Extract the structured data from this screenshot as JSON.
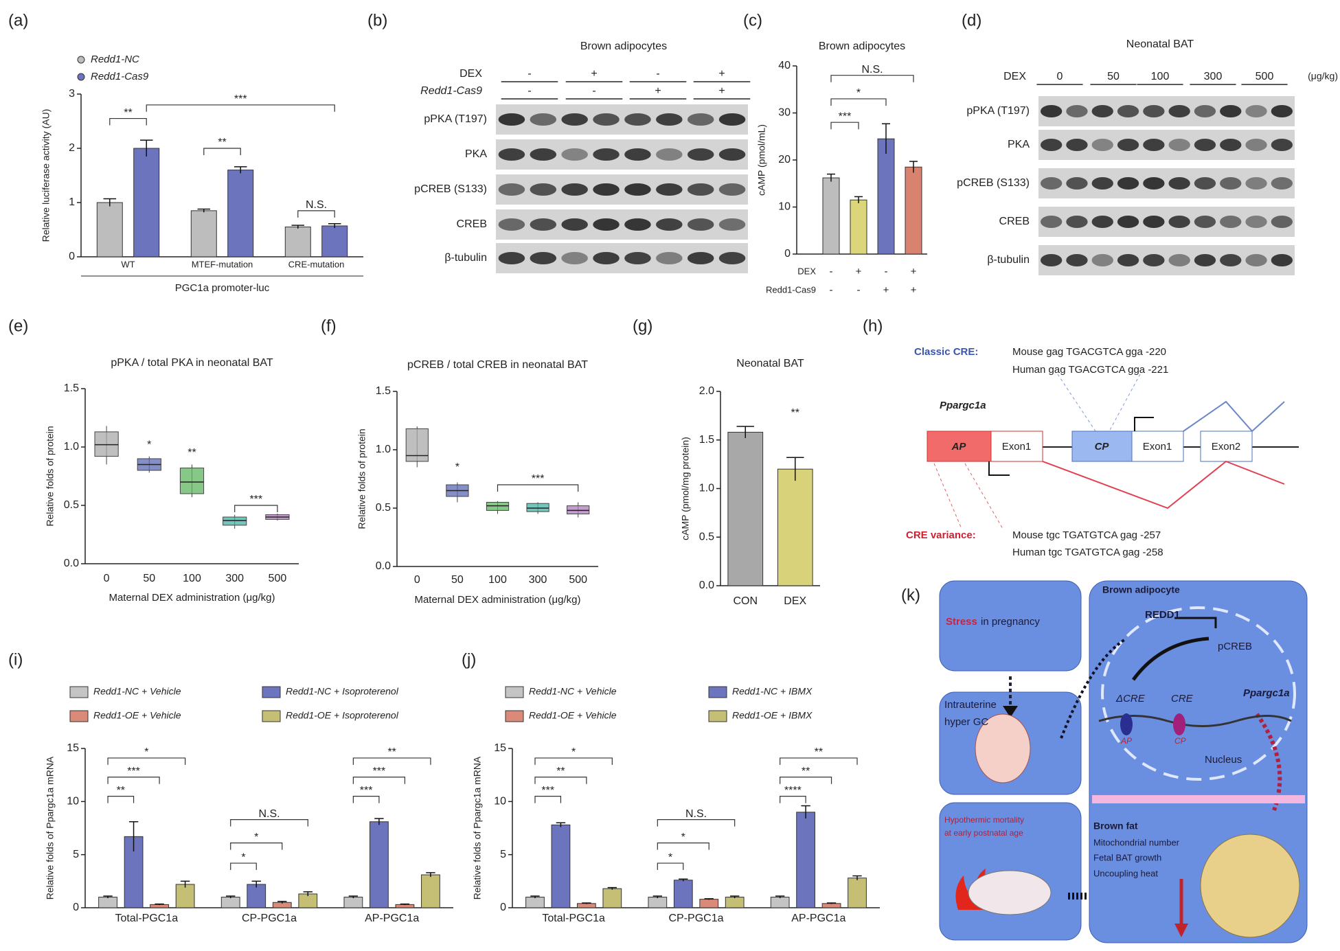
{
  "panel_labels": [
    "(a)",
    "(b)",
    "(c)",
    "(d)",
    "(e)",
    "(f)",
    "(g)",
    "(h)",
    "(i)",
    "(j)",
    "(k)"
  ],
  "chart_data": [
    {
      "type": "bar",
      "categories": [
        "WT",
        "MTEF-mutation",
        "CRE-mutation"
      ],
      "series": [
        {
          "name": "Redd1-NC",
          "color": "#bdbdbd",
          "values": [
            1.0,
            0.85,
            0.55
          ],
          "errors": [
            0.07,
            0.03,
            0.03
          ]
        },
        {
          "name": "Redd1-Cas9",
          "color": "#6b74bd",
          "values": [
            2.0,
            1.6,
            0.57
          ],
          "errors": [
            0.15,
            0.06,
            0.04
          ]
        }
      ],
      "ylabel": "Relative luciferase activity (AU)",
      "xlabel": "PGC1a promoter-luc",
      "ylim": [
        0,
        3
      ],
      "yticks": [
        0,
        1,
        2,
        3
      ],
      "annotations": [
        "**",
        "***",
        "**",
        "N.S."
      ]
    },
    {
      "type": "bar",
      "title": "Brown adipocytes",
      "values": [
        16.2,
        11.5,
        24.5,
        18.5
      ],
      "errors": [
        0.8,
        0.7,
        3.2,
        1.2
      ],
      "colors": [
        "#bdbdbd",
        "#dcd67a",
        "#6b74bd",
        "#d9826f"
      ],
      "conditions": [
        {
          "label": "DEX",
          "values": [
            "-",
            "+",
            "-",
            "+"
          ]
        },
        {
          "label": "Redd1-Cas9",
          "values": [
            "-",
            "-",
            "+",
            "+"
          ]
        }
      ],
      "ylabel": "cAMP (pmol/mL)",
      "ylim": [
        0,
        40
      ],
      "yticks": [
        0,
        10,
        20,
        30,
        40
      ],
      "annotations": [
        "N.S.",
        "*",
        "***"
      ]
    },
    {
      "type": "box",
      "title": "pPKA / total PKA in neonatal BAT",
      "categories": [
        "0",
        "50",
        "100",
        "300",
        "500"
      ],
      "min": [
        0.85,
        0.78,
        0.57,
        0.3,
        0.37
      ],
      "q1": [
        0.92,
        0.8,
        0.6,
        0.33,
        0.38
      ],
      "median": [
        1.02,
        0.85,
        0.7,
        0.37,
        0.4
      ],
      "q3": [
        1.13,
        0.9,
        0.82,
        0.4,
        0.42
      ],
      "max": [
        1.18,
        0.92,
        0.85,
        0.42,
        0.43
      ],
      "colors": [
        "#a9a9a9",
        "#5b68b5",
        "#5fb660",
        "#45b3a5",
        "#b27cbd"
      ],
      "ylabel": "Relative folds of protein",
      "xlabel": "Maternal DEX administration (μg/kg)",
      "ylim": [
        0,
        1.5
      ],
      "yticks": [
        {
          "value": 0,
          "label": "0.0"
        },
        0.5,
        {
          "value": 1,
          "label": "1.0"
        },
        1.5
      ],
      "annotations": [
        "*",
        "**",
        "***"
      ]
    },
    {
      "type": "box",
      "title": "pCREB / total CREB in neonatal BAT",
      "categories": [
        "0",
        "50",
        "100",
        "300",
        "500"
      ],
      "min": [
        0.85,
        0.55,
        0.45,
        0.45,
        0.42
      ],
      "q1": [
        0.9,
        0.6,
        0.48,
        0.47,
        0.45
      ],
      "median": [
        0.95,
        0.65,
        0.52,
        0.5,
        0.48
      ],
      "q3": [
        1.18,
        0.7,
        0.55,
        0.54,
        0.52
      ],
      "max": [
        1.2,
        0.72,
        0.56,
        0.55,
        0.55
      ],
      "colors": [
        "#a9a9a9",
        "#5b68b5",
        "#5fb660",
        "#45b3a5",
        "#b27cbd"
      ],
      "ylabel": "Relative folds of protein",
      "xlabel": "Maternal DEX administration (μg/kg)",
      "ylim": [
        0,
        1.5
      ],
      "yticks": [
        {
          "value": 0,
          "label": "0.0"
        },
        0.5,
        {
          "value": 1,
          "label": "1.0"
        },
        1.5
      ],
      "annotations": [
        "*",
        "***"
      ]
    },
    {
      "type": "bar",
      "title": "Neonatal BAT",
      "categories": [
        "CON",
        "DEX"
      ],
      "values": [
        1.58,
        1.2
      ],
      "errors": [
        0.06,
        0.12
      ],
      "colors": [
        "#a8a8a8",
        "#d8d27a"
      ],
      "ylabel": "cAMP (pmol/mg protein)",
      "ylim": [
        0,
        2
      ],
      "yticks": [
        {
          "value": 0,
          "label": "0.0"
        },
        0.5,
        {
          "value": 1,
          "label": "1.0"
        },
        1.5,
        {
          "value": 2,
          "label": "2.0"
        }
      ],
      "annotations": [
        "**"
      ]
    },
    {
      "type": "bar",
      "categories": [
        "Total-PGC1a",
        "CP-PGC1a",
        "AP-PGC1a"
      ],
      "series": [
        {
          "name": "Redd1-NC + Vehicle",
          "color": "#c4c4c4",
          "values": [
            1,
            1,
            1
          ],
          "errors": [
            0.1,
            0.1,
            0.1
          ]
        },
        {
          "name": "Redd1-NC + Isoproterenol",
          "color": "#6b74bd",
          "values": [
            6.7,
            2.2,
            8.1
          ],
          "errors": [
            1.4,
            0.3,
            0.3
          ]
        },
        {
          "name": "Redd1-OE + Vehicle",
          "color": "#d98a78",
          "values": [
            0.3,
            0.5,
            0.3
          ],
          "errors": [
            0.05,
            0.1,
            0.05
          ]
        },
        {
          "name": "Redd1-OE + Isoproterenol",
          "color": "#c4bf74",
          "values": [
            2.2,
            1.3,
            3.1
          ],
          "errors": [
            0.3,
            0.2,
            0.2
          ]
        }
      ],
      "ylabel": "Relative folds of Ppargc1a mRNA",
      "ylim": [
        0,
        15
      ],
      "yticks": [
        0,
        5,
        10,
        15
      ],
      "annotations": [
        "**",
        "***",
        "*",
        "*",
        "*",
        "N.S.",
        "***",
        "***",
        "**"
      ]
    },
    {
      "type": "bar",
      "categories": [
        "Total-PGC1a",
        "CP-PGC1a",
        "AP-PGC1a"
      ],
      "series": [
        {
          "name": "Redd1-NC + Vehicle",
          "color": "#c4c4c4",
          "values": [
            1,
            1,
            1
          ],
          "errors": [
            0.1,
            0.1,
            0.1
          ]
        },
        {
          "name": "Redd1-NC + IBMX",
          "color": "#6b74bd",
          "values": [
            7.8,
            2.6,
            9.0
          ],
          "errors": [
            0.2,
            0.1,
            0.6
          ]
        },
        {
          "name": "Redd1-OE + Vehicle",
          "color": "#d98a78",
          "values": [
            0.4,
            0.8,
            0.4
          ],
          "errors": [
            0.05,
            0.05,
            0.05
          ]
        },
        {
          "name": "Redd1-OE + IBMX",
          "color": "#c4bf74",
          "values": [
            1.8,
            1.0,
            2.8
          ],
          "errors": [
            0.1,
            0.1,
            0.2
          ]
        }
      ],
      "ylabel": "Relative folds of Ppargc1a mRNA",
      "ylim": [
        0,
        15
      ],
      "yticks": [
        0,
        5,
        10,
        15
      ],
      "annotations": [
        "***",
        "**",
        "*",
        "*",
        "*",
        "N.S.",
        "****",
        "**",
        "**"
      ]
    }
  ],
  "blots": [
    {
      "title": "Brown adipocytes",
      "conditions": [
        {
          "label": "DEX",
          "values": [
            "-",
            "+",
            "-",
            "+"
          ]
        },
        {
          "label": "Redd1-Cas9",
          "values": [
            "-",
            "-",
            "+",
            "+"
          ]
        }
      ],
      "rows": [
        "pPKA (T197)",
        "PKA",
        "pCREB (S133)",
        "CREB",
        "β-tubulin"
      ]
    },
    {
      "title": "Neonatal BAT",
      "conditions": [
        {
          "label": "DEX",
          "values": [
            "0",
            "50",
            "100",
            "300",
            "500"
          ]
        }
      ],
      "unit": "(μg/kg)",
      "rows": [
        "pPKA (T197)",
        "PKA",
        "pCREB (S133)",
        "CREB",
        "β-tubulin"
      ]
    }
  ],
  "diagram_h": {
    "classic_label": "Classic CRE:",
    "classic_mouse": "Mouse gag TGACGTCA gga -220",
    "classic_human": "Human gag TGACGTCA gga -221",
    "gene": "Ppargc1a",
    "ap": "AP",
    "ap_exon": "Exon1",
    "cp": "CP",
    "cp_exon": "Exon1",
    "exon2": "Exon2",
    "variance_label": "CRE variance:",
    "variance_mouse": "Mouse tgc  TGATGTCA gag -257",
    "variance_human": "Human tgc TGATGTCA gag -258"
  },
  "diagram_k": {
    "stress": "Stress",
    "pregnancy": "in pregnancy",
    "intrauterine": "Intrauterine",
    "hyper_gc": "hyper GC",
    "hypothermic": "Hypothermic mortality",
    "postnatal": "at early postnatal age",
    "brown_adipocyte": "Brown adipocyte",
    "redd1": "REDD1",
    "pcreb": "pCREB",
    "dcre": "ΔCRE",
    "cre": "CRE",
    "ppargc1a": "Ppargc1a",
    "ap": "AP",
    "cp": "CP",
    "nucleus": "Nucleus",
    "brown_fat": "Brown fat",
    "mito": "Mitochondrial number",
    "fetal": "Fetal BAT growth",
    "uncoupling": "Uncoupling heat"
  }
}
